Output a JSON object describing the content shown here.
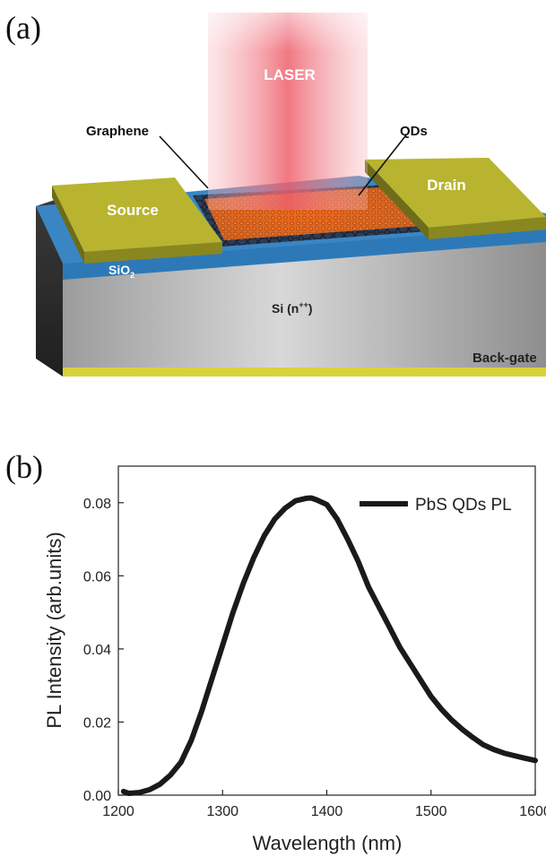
{
  "panel_a": {
    "label": "(a)",
    "laser_label": "LASER",
    "graphene_label": "Graphene",
    "qds_label": "QDs",
    "source_label": "Source",
    "drain_label": "Drain",
    "sio2_label": "SiO",
    "sio2_sub": "2",
    "si_label": "Si (n",
    "si_sup": "++",
    "si_close": ")",
    "backgate_label": "Back-gate",
    "colors": {
      "laser": "#f2707a",
      "gold": "#b8b430",
      "sio2": "#2d79b8",
      "si": "#b9b9b9",
      "backgate": "#d8d23a",
      "qd": "#e8601e"
    }
  },
  "panel_b": {
    "label": "(b)"
  },
  "chart_data": {
    "type": "line",
    "xlabel": "Wavelength (nm)",
    "ylabel": "PL Intensity (arb.units)",
    "xlim": [
      1200,
      1600
    ],
    "ylim": [
      0,
      0.09
    ],
    "xticks": [
      "1200",
      "1300",
      "1400",
      "1500",
      "1600"
    ],
    "yticks": [
      "0.00",
      "0.02",
      "0.04",
      "0.06",
      "0.08"
    ],
    "legend_position": "top-right",
    "series": [
      {
        "name": "PbS QDs PL",
        "color": "#1a1a1a",
        "x": [
          1205,
          1210,
          1220,
          1230,
          1240,
          1250,
          1260,
          1270,
          1280,
          1290,
          1300,
          1310,
          1320,
          1330,
          1340,
          1350,
          1360,
          1370,
          1380,
          1385,
          1390,
          1400,
          1410,
          1420,
          1430,
          1440,
          1450,
          1460,
          1470,
          1480,
          1490,
          1500,
          1510,
          1520,
          1530,
          1540,
          1550,
          1560,
          1570,
          1580,
          1590,
          1600
        ],
        "y": [
          0.001,
          0.0005,
          0.0007,
          0.0015,
          0.003,
          0.0055,
          0.009,
          0.015,
          0.023,
          0.032,
          0.041,
          0.05,
          0.058,
          0.065,
          0.071,
          0.0755,
          0.0785,
          0.0805,
          0.0812,
          0.0813,
          0.0808,
          0.0795,
          0.0755,
          0.07,
          0.064,
          0.057,
          0.0515,
          0.046,
          0.0405,
          0.036,
          0.0315,
          0.027,
          0.0235,
          0.0205,
          0.018,
          0.0158,
          0.0138,
          0.0125,
          0.0115,
          0.0108,
          0.0101,
          0.0095
        ]
      }
    ]
  }
}
